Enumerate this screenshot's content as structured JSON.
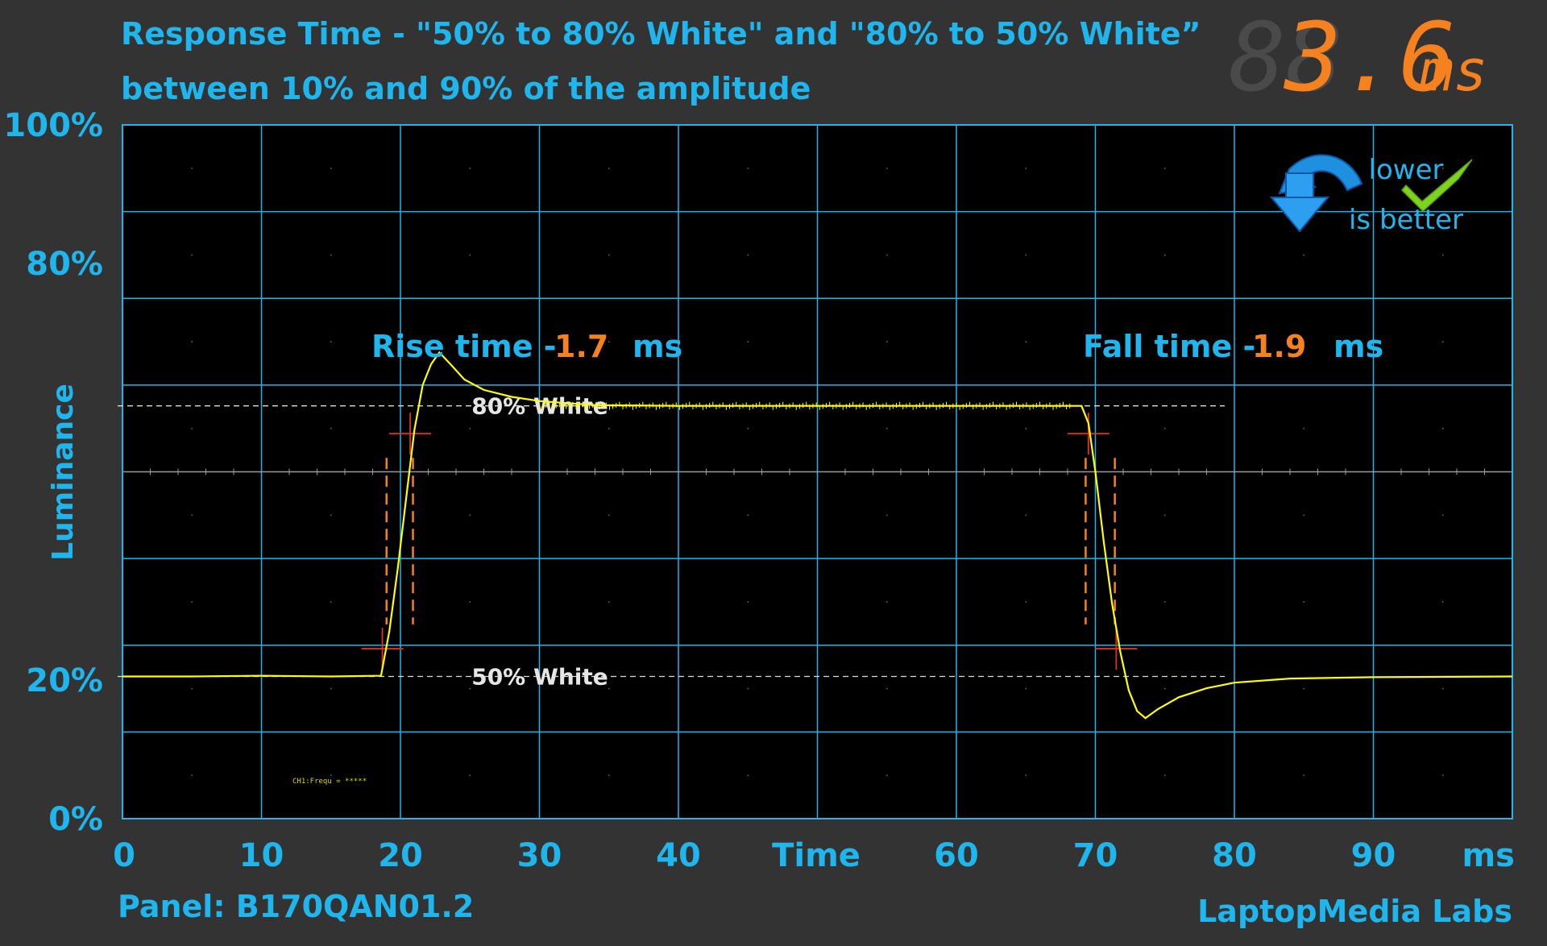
{
  "header": {
    "title_line1": "Response Time - \"50% to 80% White\" and \"80% to 50% White”",
    "title_line2": "between 10% and 90% of the amplitude",
    "total_value": "3.6",
    "total_unit": "ms"
  },
  "badge": {
    "line1": "lower",
    "line2": "is better"
  },
  "footer": {
    "panel": "Panel: B170QAN01.2",
    "brand": "LaptopMedia Labs"
  },
  "rise": {
    "label": "Rise time -",
    "value": "1.7",
    "unit": "ms"
  },
  "fall": {
    "label": "Fall time -",
    "value": "1.9",
    "unit": "ms"
  },
  "scope_text": "CH1:Frequ = *****",
  "colors": {
    "accent": "#1fb6ee",
    "value": "#f5821f",
    "trace": "#ffff00",
    "marker": "#e03020",
    "background": "#333333",
    "plot": "#000000"
  },
  "chart_data": {
    "type": "line",
    "xlabel": "Time",
    "xunit": "ms",
    "ylabel": "Luminance",
    "xlim": [
      0,
      100
    ],
    "ylim": [
      0,
      100
    ],
    "x_ticks": [
      0,
      10,
      20,
      30,
      40,
      60,
      70,
      80,
      90
    ],
    "y_ticks": [
      {
        "value": 0,
        "label": "0%"
      },
      {
        "value": 20,
        "label": "20%"
      },
      {
        "value": 80,
        "label": "80%"
      },
      {
        "value": 100,
        "label": "100%"
      }
    ],
    "reference_lines": [
      {
        "label": "80% White",
        "y": 59.5
      },
      {
        "label": "50% White",
        "y": 20.5
      }
    ],
    "series": [
      {
        "x": [
          0,
          5,
          10,
          15,
          18.6,
          19.2,
          19.8,
          20.4,
          21.0,
          21.6,
          22.2,
          22.8,
          23.6,
          24.6,
          26,
          28,
          30,
          34,
          40,
          50,
          60,
          69,
          69.5,
          70.0,
          70.6,
          71.2,
          71.8,
          72.4,
          73.0,
          73.6,
          74.5,
          76,
          78,
          80,
          84,
          90,
          100
        ],
        "y": [
          20.5,
          20.5,
          20.6,
          20.5,
          20.6,
          27,
          36,
          46,
          56,
          62.5,
          65.5,
          67.2,
          65.5,
          63.3,
          61.8,
          60.8,
          60.2,
          59.6,
          59.5,
          59.5,
          59.5,
          59.5,
          57,
          50,
          40,
          31,
          24,
          18.5,
          15.5,
          14.5,
          15.8,
          17.5,
          18.8,
          19.6,
          20.2,
          20.4,
          20.5
        ]
      }
    ],
    "rise_markers": {
      "x_start": 18.7,
      "x_end": 20.7,
      "y_low": 24.5,
      "y_high": 55.5,
      "dashed_x": [
        19.0,
        20.9
      ]
    },
    "fall_markers": {
      "x_start": 69.5,
      "x_end": 71.5,
      "y_high": 55.5,
      "y_low": 24.5,
      "dashed_x": [
        69.3,
        71.4
      ]
    }
  }
}
